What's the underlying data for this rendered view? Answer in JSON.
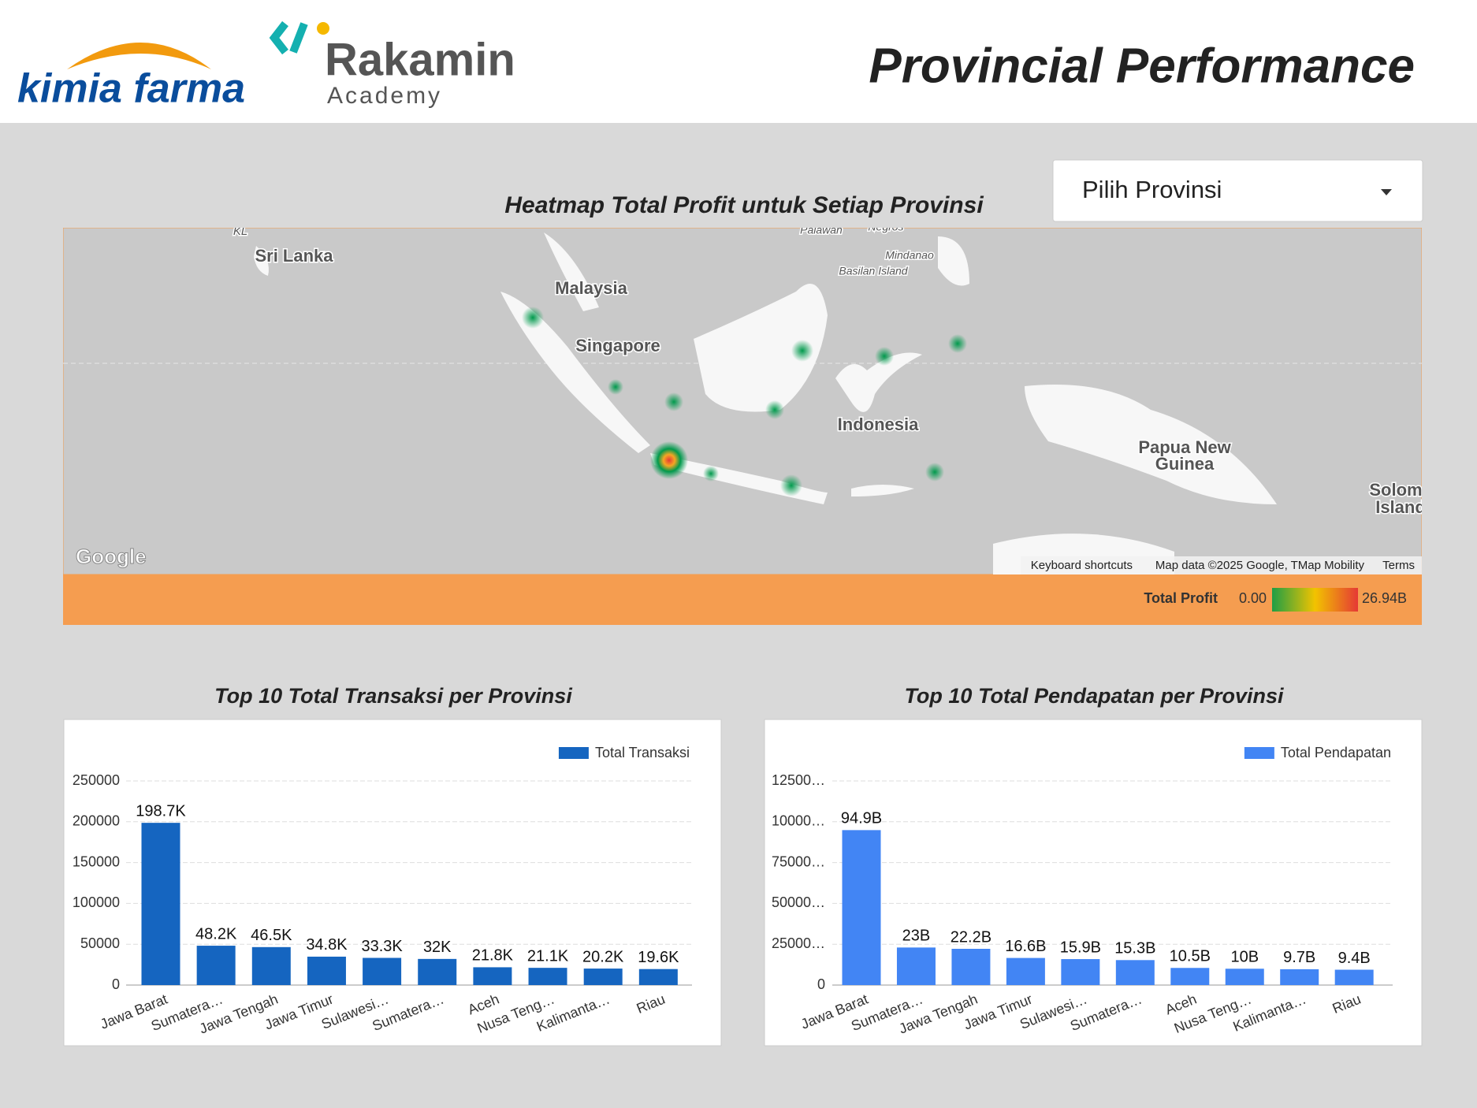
{
  "header": {
    "logo_left": "kimia farma",
    "logo_right": "Rakamin",
    "logo_right_sub": "Academy",
    "title": "Provincial Performance"
  },
  "filter": {
    "label": "Pilih Provinsi"
  },
  "map": {
    "title": "Heatmap Total Profit untuk Setiap Provinsi",
    "places": [
      "KL",
      "Sri Lanka",
      "Malaysia",
      "Singapore",
      "Indonesia",
      "Papua New",
      "Guinea",
      "Palawan",
      "Negros",
      "Mindanao",
      "Basilan Island",
      "Solom",
      "Island"
    ],
    "brand": "Google",
    "attribution": [
      "Keyboard shortcuts",
      "Map data ©2025 Google, TMap Mobility",
      "Terms"
    ],
    "legend": {
      "label": "Total Profit",
      "min_label": "0.00",
      "max_label": "26.94B"
    }
  },
  "chart_data": [
    {
      "type": "bar",
      "title": "Top 10 Total Transaksi per Provinsi",
      "categories": [
        "Jawa Barat",
        "Sumatera…",
        "Jawa Tengah",
        "Jawa Timur",
        "Sulawesi…",
        "Sumatera…",
        "Aceh",
        "Nusa Teng…",
        "Kalimanta…",
        "Riau"
      ],
      "series": [
        {
          "name": "Total Transaksi",
          "color": "#1565c0",
          "values": [
            198700,
            48200,
            46500,
            34800,
            33300,
            32000,
            21800,
            21100,
            20200,
            19600
          ],
          "value_labels": [
            "198.7K",
            "48.2K",
            "46.5K",
            "34.8K",
            "33.3K",
            "32K",
            "21.8K",
            "21.1K",
            "20.2K",
            "19.6K"
          ]
        }
      ],
      "ylim": [
        0,
        250000
      ],
      "yticks": [
        0,
        50000,
        100000,
        150000,
        200000,
        250000
      ],
      "grid": true,
      "legend": "top-right"
    },
    {
      "type": "bar",
      "title": "Top 10 Total Pendapatan per Provinsi",
      "categories": [
        "Jawa Barat",
        "Sumatera…",
        "Jawa Tengah",
        "Jawa Timur",
        "Sulawesi…",
        "Sumatera…",
        "Aceh",
        "Nusa Teng…",
        "Kalimanta…",
        "Riau"
      ],
      "series": [
        {
          "name": "Total Pendapatan",
          "color": "#4285f4",
          "values": [
            94900000000,
            23000000000,
            22200000000,
            16600000000,
            15900000000,
            15300000000,
            10500000000,
            10000000000,
            9700000000,
            9400000000
          ],
          "value_labels": [
            "94.9B",
            "23B",
            "22.2B",
            "16.6B",
            "15.9B",
            "15.3B",
            "10.5B",
            "10B",
            "9.7B",
            "9.4B"
          ]
        }
      ],
      "ylim": [
        0,
        125000000000
      ],
      "yticks": [
        0,
        {
          "value": 25000000000,
          "label": "25000…"
        },
        {
          "value": 50000000000,
          "label": "50000…"
        },
        {
          "value": 75000000000,
          "label": "75000…"
        },
        {
          "value": 100000000000,
          "label": "10000…"
        },
        {
          "value": 125000000000,
          "label": "12500…"
        }
      ],
      "grid": true,
      "legend": "top-right"
    }
  ]
}
